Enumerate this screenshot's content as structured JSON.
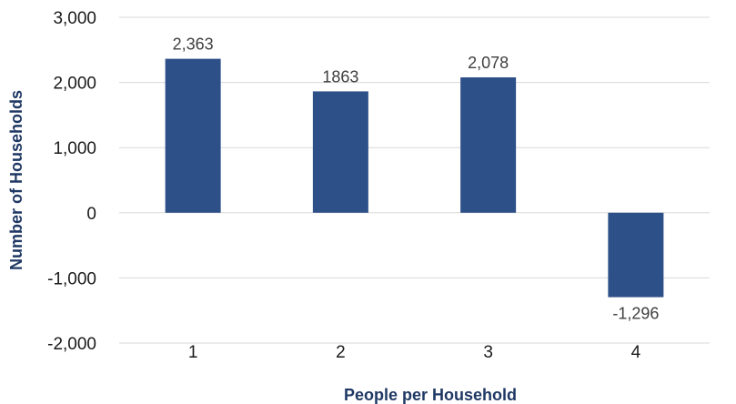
{
  "chart_data": {
    "type": "bar",
    "categories": [
      "1",
      "2",
      "3",
      "4"
    ],
    "values": [
      2363,
      1863,
      2078,
      -1296
    ],
    "data_labels": [
      "2,363",
      "1863",
      "2,078",
      "-1,296"
    ],
    "xlabel": "People per Household",
    "ylabel": "Number of Households",
    "ylim": [
      -2000,
      3000
    ],
    "yticks": [
      3000,
      2000,
      1000,
      0,
      -1000,
      -2000
    ],
    "ytick_labels": [
      "3,000",
      "2,000",
      "1,000",
      "0",
      "-1,000",
      "-2,000"
    ],
    "grid": true,
    "legend": "none",
    "colors": {
      "bar": "#2e5089",
      "axis_title": "#1f3864"
    }
  }
}
